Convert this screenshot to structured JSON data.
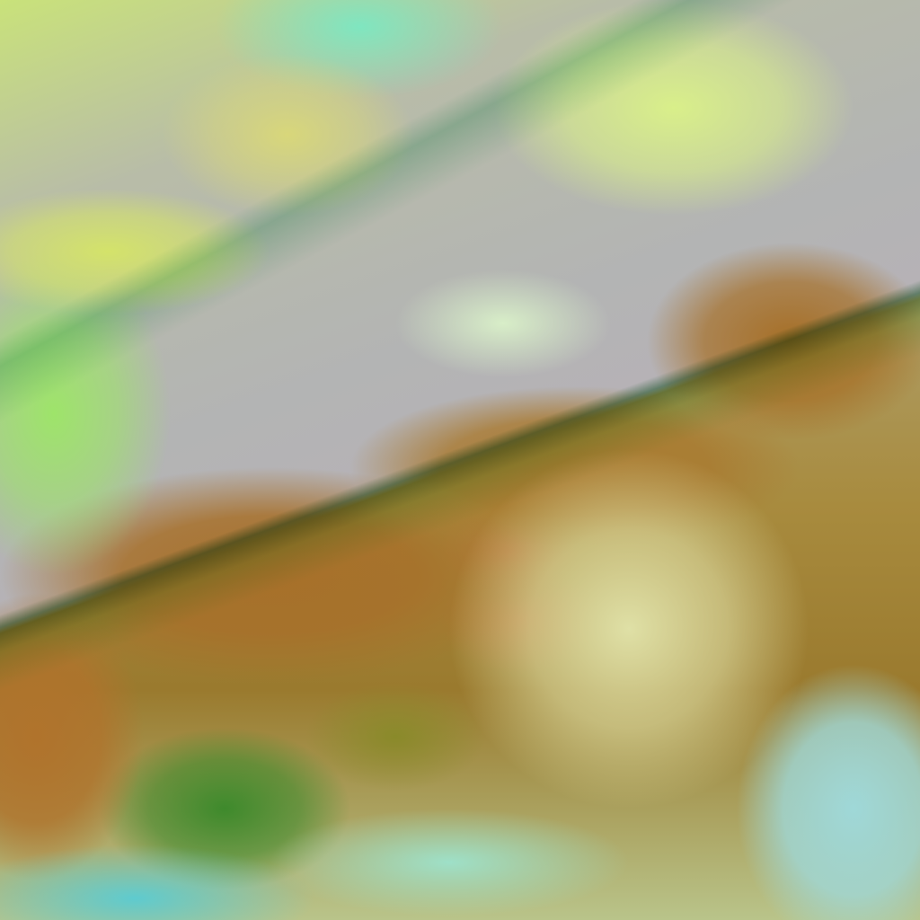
{
  "image": {
    "kind": "false-color satellite imagery",
    "colors": {
      "haze": "#b3b4b4",
      "cloud_yellow": "#d4e36a",
      "cloud_green": "#9ee46a",
      "cloud_cyan": "#9fd8d8",
      "land_brown": "#a7702a",
      "vegetation_green": "#3e8a2c"
    }
  }
}
